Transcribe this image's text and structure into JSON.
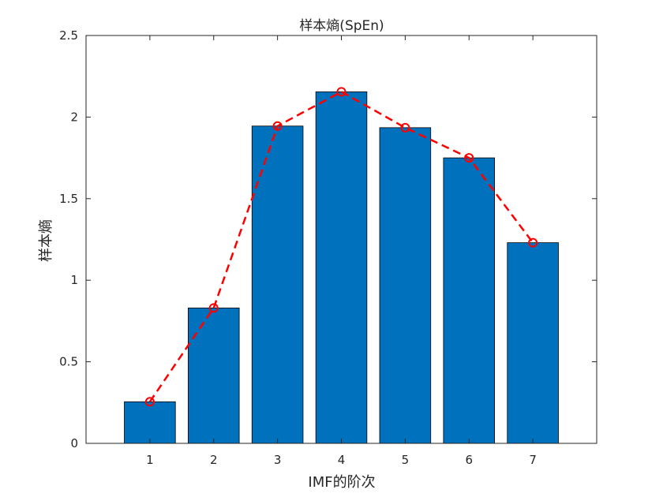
{
  "chart_data": {
    "type": "bar",
    "title": "样本熵(SpEn)",
    "xlabel": "IMF的阶次",
    "ylabel": "样本熵",
    "categories": [
      "1",
      "2",
      "3",
      "4",
      "5",
      "6",
      "7"
    ],
    "values": [
      0.255,
      0.83,
      1.945,
      2.155,
      1.935,
      1.75,
      1.23
    ],
    "overlay_line": {
      "style": "dashed",
      "marker": "circle",
      "color": "#ff0000",
      "values": [
        0.255,
        0.83,
        1.945,
        2.155,
        1.935,
        1.75,
        1.23
      ]
    },
    "xlim": [
      0,
      8
    ],
    "ylim": [
      0,
      2.5
    ],
    "yticks": [
      "0",
      "0.5",
      "1",
      "1.5",
      "2",
      "2.5"
    ],
    "yticks_values": [
      0,
      0.5,
      1,
      1.5,
      2,
      2.5
    ],
    "bar_color": "#0072bd",
    "grid": false,
    "legend": "none"
  }
}
